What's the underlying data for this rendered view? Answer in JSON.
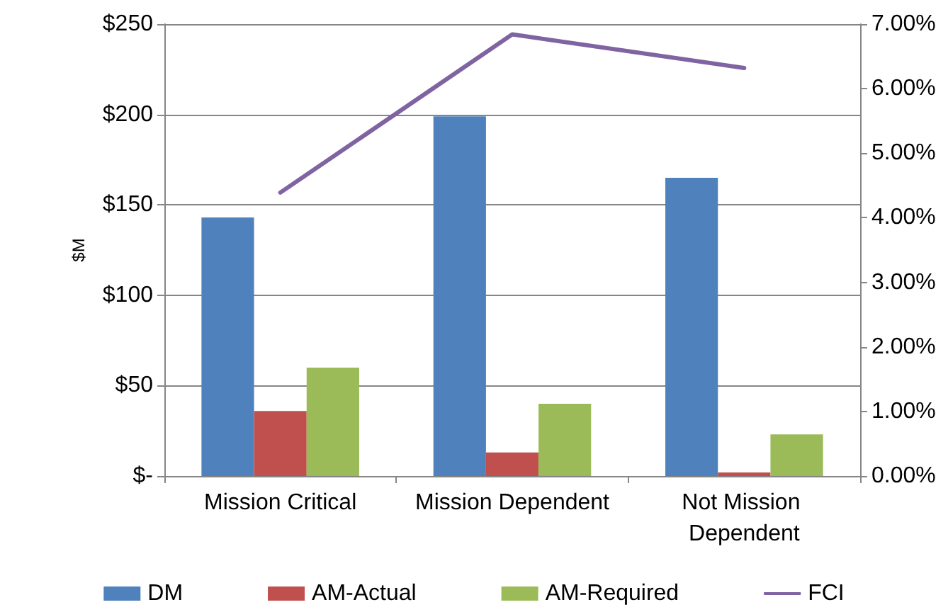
{
  "chart_data": {
    "type": "bar",
    "categories": [
      "Mission Critical",
      "Mission Dependent",
      "Not Mission Dependent"
    ],
    "series": [
      {
        "name": "DM",
        "color": "#4f81bd",
        "values": [
          143,
          199,
          165
        ]
      },
      {
        "name": "AM-Actual",
        "color": "#c0504d",
        "values": [
          36,
          13,
          2
        ]
      },
      {
        "name": "AM-Required",
        "color": "#9bbb59",
        "values": [
          60,
          40,
          23
        ]
      },
      {
        "name": "FCI",
        "type": "line",
        "axis": "y2",
        "color": "#8064a2",
        "values": [
          4.39,
          6.84,
          6.32
        ]
      }
    ],
    "ylabel": "$M",
    "ylim": [
      0,
      250
    ],
    "yticks": [
      {
        "value": 0,
        "label": "$-"
      },
      {
        "value": 50,
        "label": "$50"
      },
      {
        "value": 100,
        "label": "$100"
      },
      {
        "value": 150,
        "label": "$150"
      },
      {
        "value": 200,
        "label": "$200"
      },
      {
        "value": 250,
        "label": "$250"
      }
    ],
    "y2lim": [
      0,
      7
    ],
    "y2ticks": [
      {
        "value": 0,
        "label": "0.00%"
      },
      {
        "value": 1,
        "label": "1.00%"
      },
      {
        "value": 2,
        "label": "2.00%"
      },
      {
        "value": 3,
        "label": "3.00%"
      },
      {
        "value": 4,
        "label": "4.00%"
      },
      {
        "value": 5,
        "label": "5.00%"
      },
      {
        "value": 6,
        "label": "6.00%"
      },
      {
        "value": 7,
        "label": "7.00%"
      }
    ],
    "grid": "y",
    "legend": "bottom",
    "marker": "none"
  }
}
